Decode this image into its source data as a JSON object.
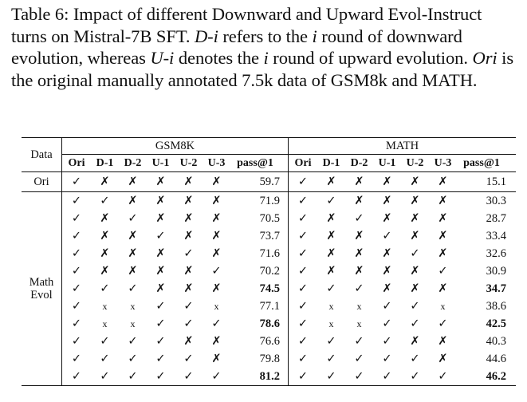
{
  "caption": {
    "label": "Table 6:",
    "text_before_di": "Impact of different Downward and Upward Evol-Instruct turns on Mistral-7B SFT.",
    "di": "D-i",
    "text_refers": "refers to the",
    "i1": "i",
    "text_round_downward": "round of downward evolution, whereas",
    "ui": "U-i",
    "text_denotes": "denotes the",
    "i2": "i",
    "text_round_upward": "round of upward evolution.",
    "ori": "Ori",
    "text_end": "is the original manually annotated 7.5k data of GSM8k and MATH."
  },
  "table": {
    "data_header": "Data",
    "groups": [
      "GSM8K",
      "MATH"
    ],
    "columns": [
      "Ori",
      "D-1",
      "D-2",
      "U-1",
      "U-2",
      "U-3",
      "pass@1"
    ],
    "row_labels": {
      "ori": "Ori",
      "evol_line1": "Math",
      "evol_line2": "Evol"
    },
    "rows": [
      {
        "gsm": [
          "✓",
          "✗",
          "✗",
          "✗",
          "✗",
          "✗"
        ],
        "gsm_pass": "59.7",
        "gsm_bold": false,
        "math": [
          "✓",
          "✗",
          "✗",
          "✗",
          "✗",
          "✗"
        ],
        "math_pass": "15.1",
        "math_bold": false
      },
      {
        "gsm": [
          "✓",
          "✓",
          "✗",
          "✗",
          "✗",
          "✗"
        ],
        "gsm_pass": "71.9",
        "gsm_bold": false,
        "math": [
          "✓",
          "✓",
          "✗",
          "✗",
          "✗",
          "✗"
        ],
        "math_pass": "30.3",
        "math_bold": false
      },
      {
        "gsm": [
          "✓",
          "✗",
          "✓",
          "✗",
          "✗",
          "✗"
        ],
        "gsm_pass": "70.5",
        "gsm_bold": false,
        "math": [
          "✓",
          "✗",
          "✓",
          "✗",
          "✗",
          "✗"
        ],
        "math_pass": "28.7",
        "math_bold": false
      },
      {
        "gsm": [
          "✓",
          "✗",
          "✗",
          "✓",
          "✗",
          "✗"
        ],
        "gsm_pass": "73.7",
        "gsm_bold": false,
        "math": [
          "✓",
          "✗",
          "✗",
          "✓",
          "✗",
          "✗"
        ],
        "math_pass": "33.4",
        "math_bold": false
      },
      {
        "gsm": [
          "✓",
          "✗",
          "✗",
          "✗",
          "✓",
          "✗"
        ],
        "gsm_pass": "71.6",
        "gsm_bold": false,
        "math": [
          "✓",
          "✗",
          "✗",
          "✗",
          "✓",
          "✗"
        ],
        "math_pass": "32.6",
        "math_bold": false
      },
      {
        "gsm": [
          "✓",
          "✗",
          "✗",
          "✗",
          "✗",
          "✓"
        ],
        "gsm_pass": "70.2",
        "gsm_bold": false,
        "math": [
          "✓",
          "✗",
          "✗",
          "✗",
          "✗",
          "✓"
        ],
        "math_pass": "30.9",
        "math_bold": false
      },
      {
        "gsm": [
          "✓",
          "✓",
          "✓",
          "✗",
          "✗",
          "✗"
        ],
        "gsm_pass": "74.5",
        "gsm_bold": true,
        "math": [
          "✓",
          "✓",
          "✓",
          "✗",
          "✗",
          "✗"
        ],
        "math_pass": "34.7",
        "math_bold": true
      },
      {
        "gsm": [
          "✓",
          "x",
          "x",
          "✓",
          "✓",
          "x"
        ],
        "gsm_pass": "77.1",
        "gsm_bold": false,
        "math": [
          "✓",
          "x",
          "x",
          "✓",
          "✓",
          "x"
        ],
        "math_pass": "38.6",
        "math_bold": false
      },
      {
        "gsm": [
          "✓",
          "x",
          "x",
          "✓",
          "✓",
          "✓"
        ],
        "gsm_pass": "78.6",
        "gsm_bold": true,
        "math": [
          "✓",
          "x",
          "x",
          "✓",
          "✓",
          "✓"
        ],
        "math_pass": "42.5",
        "math_bold": true
      },
      {
        "gsm": [
          "✓",
          "✓",
          "✓",
          "✓",
          "✗",
          "✗"
        ],
        "gsm_pass": "76.6",
        "gsm_bold": false,
        "math": [
          "✓",
          "✓",
          "✓",
          "✓",
          "✗",
          "✗"
        ],
        "math_pass": "40.3",
        "math_bold": false
      },
      {
        "gsm": [
          "✓",
          "✓",
          "✓",
          "✓",
          "✓",
          "✗"
        ],
        "gsm_pass": "79.8",
        "gsm_bold": false,
        "math": [
          "✓",
          "✓",
          "✓",
          "✓",
          "✓",
          "✗"
        ],
        "math_pass": "44.6",
        "math_bold": false
      },
      {
        "gsm": [
          "✓",
          "✓",
          "✓",
          "✓",
          "✓",
          "✓"
        ],
        "gsm_pass": "81.2",
        "gsm_bold": true,
        "math": [
          "✓",
          "✓",
          "✓",
          "✓",
          "✓",
          "✓"
        ],
        "math_pass": "46.2",
        "math_bold": true
      }
    ]
  }
}
